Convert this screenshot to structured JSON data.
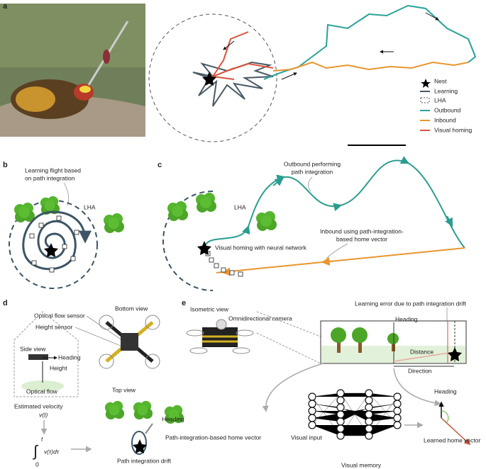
{
  "panel_a": {
    "label": "a",
    "legend": [
      "Nest",
      "Learning",
      "LHA",
      "Outbound",
      "Inbound",
      "Visual homing"
    ]
  },
  "panel_b": {
    "label": "b",
    "caption": [
      "Learning flight based",
      "on path integration"
    ],
    "lha": "LHA"
  },
  "panel_c": {
    "label": "c",
    "outbound": [
      "Outbound performing",
      "path integration"
    ],
    "lha": "LHA",
    "visual_homing": "Visual homing with neural network",
    "inbound": [
      "Inbound using path-integration-",
      "based home vector"
    ]
  },
  "panel_d": {
    "label": "d",
    "optical_flow_sensor": "Optical flow sensor",
    "height_sensor": "Height sensor",
    "bottom_view": "Bottom view",
    "side_view": "Side view",
    "heading_side": "Heading",
    "height": "Height",
    "optical_flow": "Optical flow",
    "estimated_velocity": "Estimated velocity",
    "velocity": "v(t)",
    "integral": "∫",
    "integrand": "v(τ)dτ",
    "upper_limit": "t",
    "lower_limit": "0",
    "top_view": "Top view",
    "heading_top": "Heading",
    "home_vector": "Path-integration-based home vector",
    "drift": "Path integration drift"
  },
  "panel_e": {
    "label": "e",
    "isometric_view": "Isometric view",
    "camera": "Omnidirectional camera",
    "learning_error": "Learning error due to path integration drift",
    "heading_view": "Heading",
    "distance": "Distance",
    "direction": "Direction",
    "heading_vector": "Heading",
    "visual_input": "Visual input",
    "learned_vector": "Learned home vector",
    "visual_memory": "Visual memory"
  }
}
